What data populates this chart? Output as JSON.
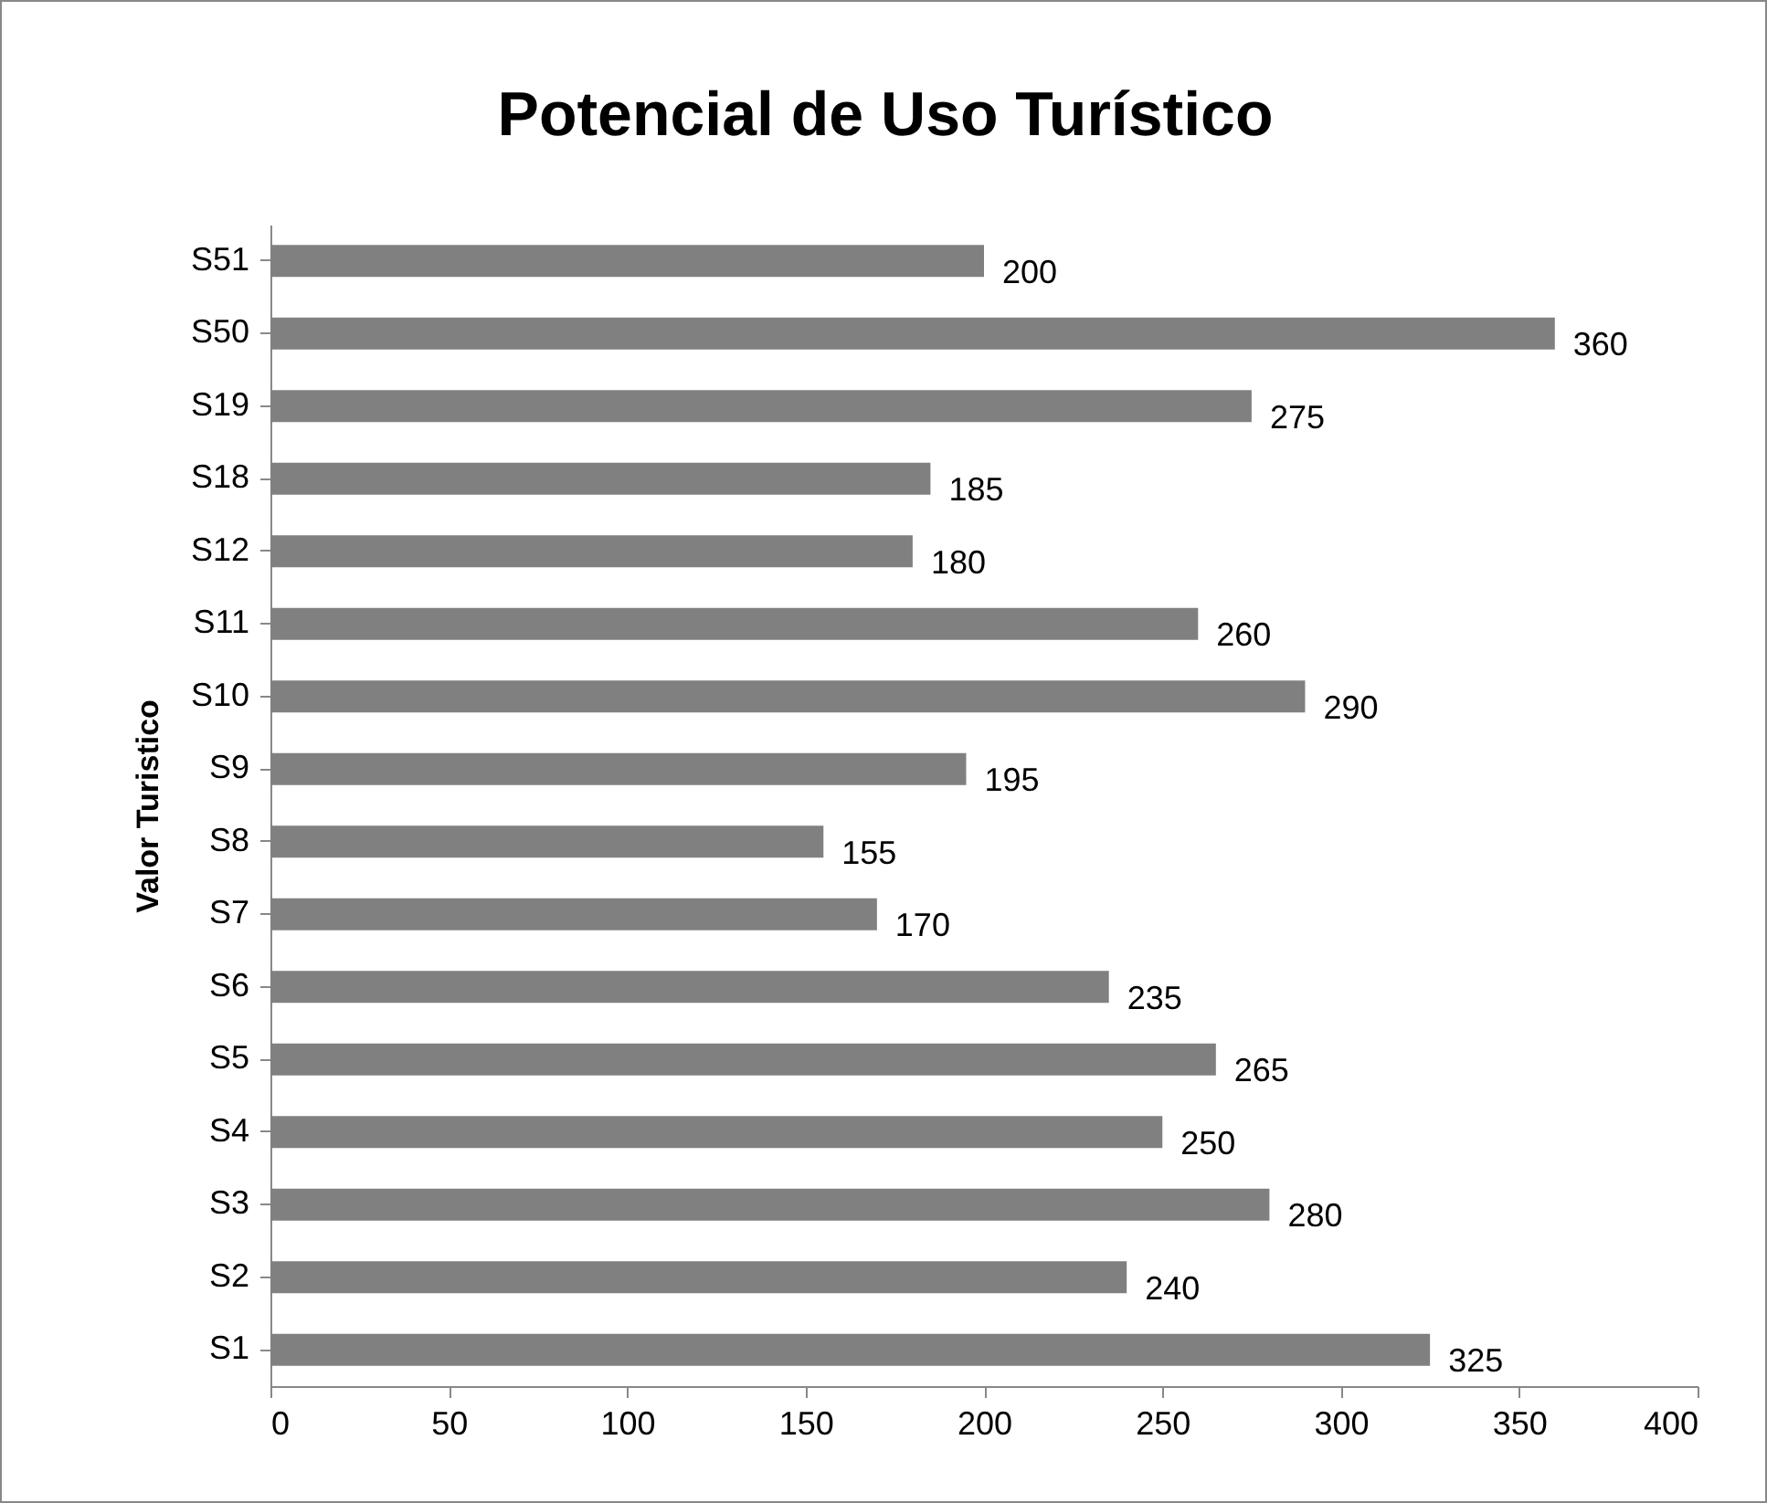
{
  "chart_data": {
    "type": "bar",
    "orientation": "horizontal",
    "title": "Potencial de Uso Turístico",
    "ylabel": "Valor Turistico",
    "categories": [
      "S51",
      "S50",
      "S19",
      "S18",
      "S12",
      "S11",
      "S10",
      "S9",
      "S8",
      "S7",
      "S6",
      "S5",
      "S4",
      "S3",
      "S2",
      "S1"
    ],
    "values": [
      200,
      360,
      275,
      185,
      180,
      260,
      290,
      195,
      155,
      170,
      235,
      265,
      250,
      280,
      240,
      325
    ],
    "color": "#808080",
    "xlim": [
      0,
      400
    ],
    "xticks": [
      0,
      50,
      100,
      150,
      200,
      250,
      300,
      350,
      400
    ],
    "data_labels": true,
    "grid": false
  }
}
